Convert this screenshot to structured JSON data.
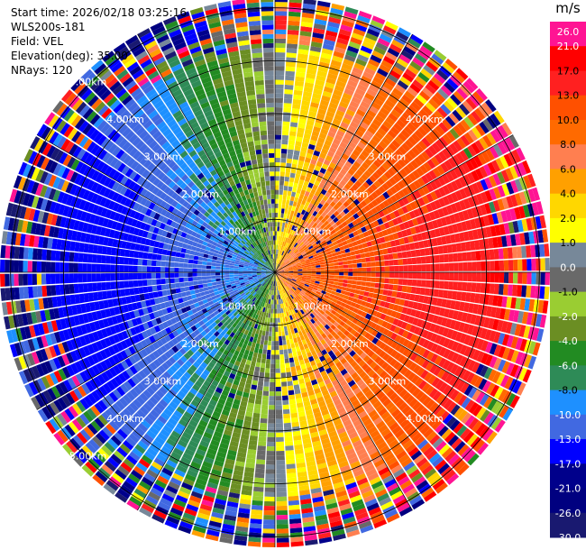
{
  "header": {
    "start_time": "Start time: 2026/02/18 03:25:16",
    "instrument": "WLS200s-181",
    "field": "Field: VEL",
    "elevation": "Elevation(deg): 35.00",
    "nrays": "NRays: 120"
  },
  "ppi": {
    "range_labels_upper_left": [
      "1.00km",
      "2.00km",
      "3.00km",
      "4.00km",
      "5.00km"
    ],
    "range_labels_upper_right": [
      "1.00km",
      "2.00km",
      "3.00km",
      "4.00km"
    ],
    "range_labels_lower_left": [
      "1.00km",
      "2.00km",
      "3.00km",
      "4.00km",
      "5.00km"
    ],
    "range_labels_lower_right": [
      "1.00km",
      "2.00km",
      "3.00km",
      "4.00km"
    ],
    "nrays": 120,
    "max_range_km": 5.2
  },
  "colorbar": {
    "unit": "m/s",
    "ticks": [
      "26.0",
      "21.0",
      "17.0",
      "13.0",
      "10.0",
      "8.0",
      "6.0",
      "4.0",
      "2.0",
      "1.0",
      "0.0",
      "-1.0",
      "-2.0",
      "-4.0",
      "-6.0",
      "-8.0",
      "-10.0",
      "-13.0",
      "-17.0",
      "-21.0",
      "-26.0",
      "-30.0"
    ],
    "colors": [
      "#ff1493",
      "#ff0000",
      "#ff2020",
      "#ff5000",
      "#ff6a00",
      "#ff7f50",
      "#ffa000",
      "#ffd700",
      "#ffff00",
      "#778899",
      "#696969",
      "#9acd32",
      "#6b8e23",
      "#228b22",
      "#2e8b57",
      "#1e90ff",
      "#4169e1",
      "#0000ff",
      "#00008b",
      "#000080",
      "#191970"
    ]
  }
}
